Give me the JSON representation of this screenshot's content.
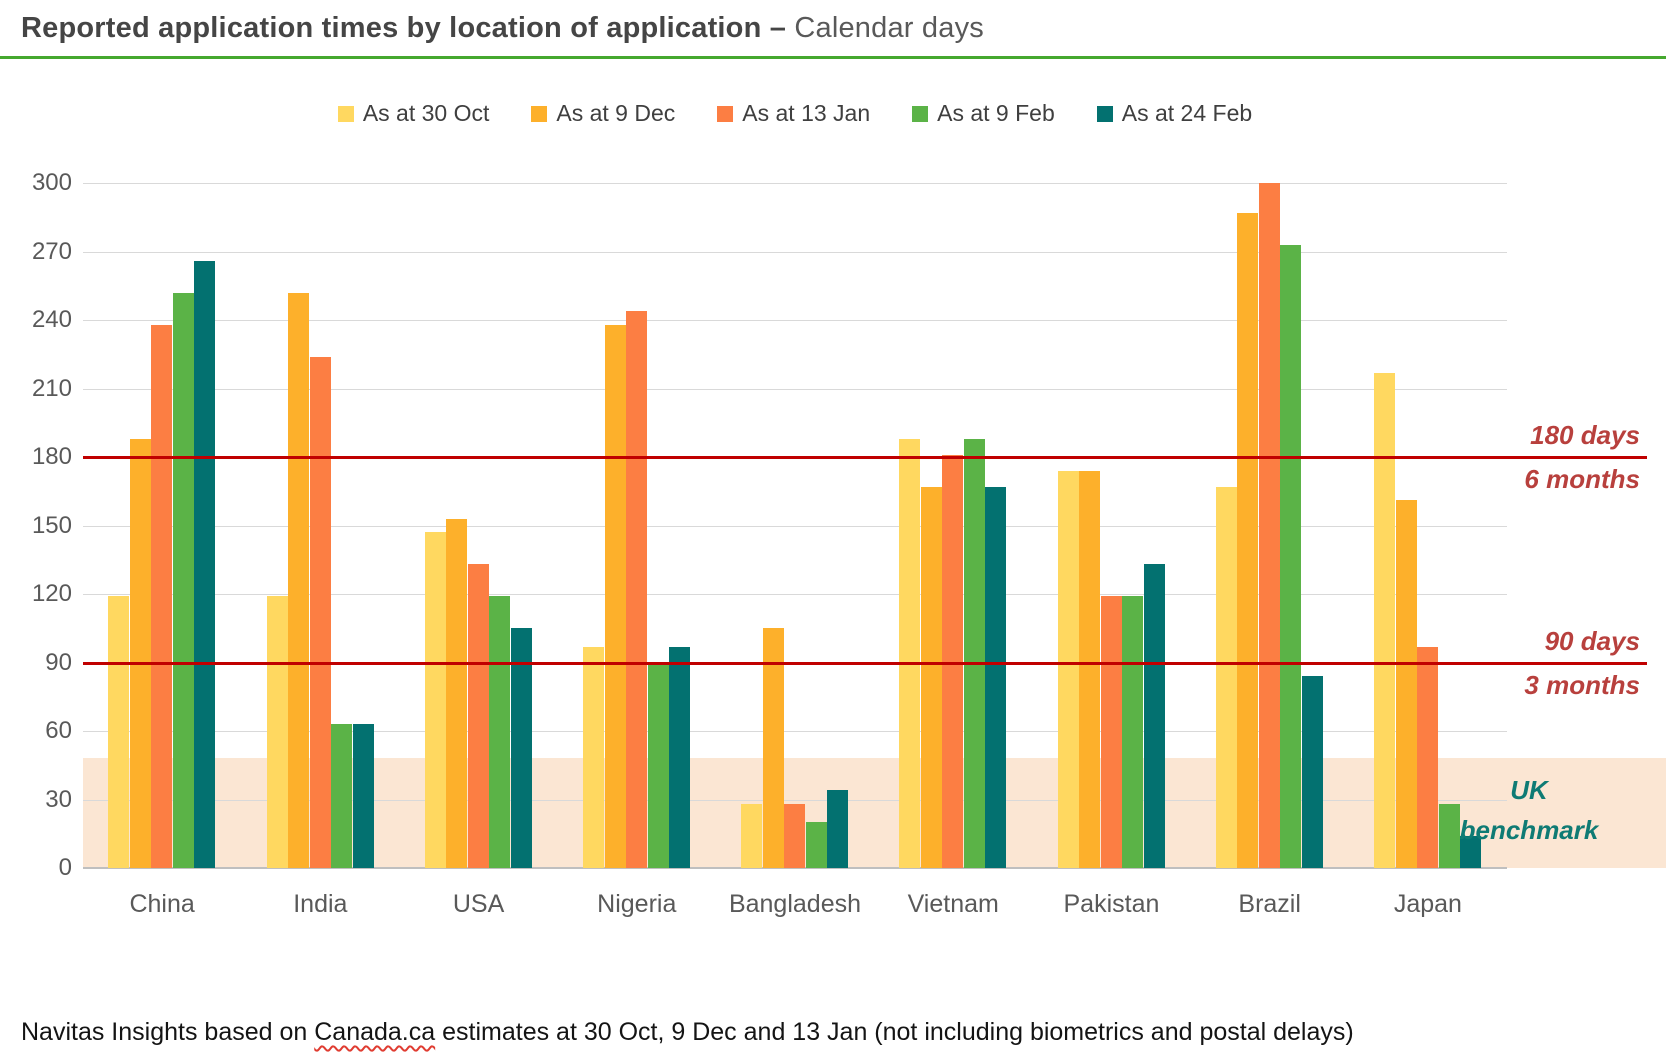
{
  "header": {
    "title_bold": "Reported application times by location of application –",
    "title_regular": " Calendar days"
  },
  "chart_data": {
    "type": "bar",
    "title": "Reported application times by location of application – Calendar days",
    "categories": [
      "China",
      "India",
      "USA",
      "Nigeria",
      "Bangladesh",
      "Vietnam",
      "Pakistan",
      "Brazil",
      "Japan"
    ],
    "series": [
      {
        "name": "As at 30 Oct",
        "color": "#FFD860",
        "values": [
          119,
          119,
          147,
          97,
          28,
          188,
          174,
          167,
          217
        ]
      },
      {
        "name": "As at 9 Dec",
        "color": "#FDB02B",
        "values": [
          188,
          252,
          153,
          238,
          105,
          167,
          174,
          287,
          161
        ]
      },
      {
        "name": "As at 13 Jan",
        "color": "#FC7E43",
        "values": [
          238,
          224,
          133,
          244,
          28,
          181,
          119,
          300,
          97
        ]
      },
      {
        "name": "As at 9 Feb",
        "color": "#5BB347",
        "values": [
          252,
          63,
          119,
          90,
          20,
          188,
          119,
          273,
          28
        ]
      },
      {
        "name": "As at 24 Feb",
        "color": "#037170",
        "values": [
          266,
          63,
          105,
          97,
          34,
          167,
          133,
          84,
          14
        ]
      }
    ],
    "ylim": [
      0,
      300
    ],
    "ytick_step": 30,
    "grid": true,
    "legend_position": "top",
    "reference_lines": [
      {
        "value": 180,
        "color": "#C00000",
        "label_line1": "180 days",
        "label_line2": "6 months"
      },
      {
        "value": 90,
        "color": "#C00000",
        "label_line1": "90 days",
        "label_line2": "3 months"
      }
    ],
    "benchmark_band": {
      "from": 0,
      "to": 48,
      "color": "#FBE6D3",
      "label_line1": "UK",
      "label_line2": "benchmark",
      "text_color": "#0F7B74"
    }
  },
  "footer": {
    "prefix": "Navitas Insights based on ",
    "underlined": "Canada.ca",
    "suffix": " estimates at 30 Oct, 9 Dec and 13 Jan (not including biometrics and postal delays)"
  },
  "theme": {
    "title_rule_green": "#45A82F",
    "axis_text": "#595959",
    "gridline": "#D9D9D9",
    "baseline": "#BFBFBF",
    "ref_text": "#B8403D",
    "legend_text": "#3F3F3F"
  }
}
